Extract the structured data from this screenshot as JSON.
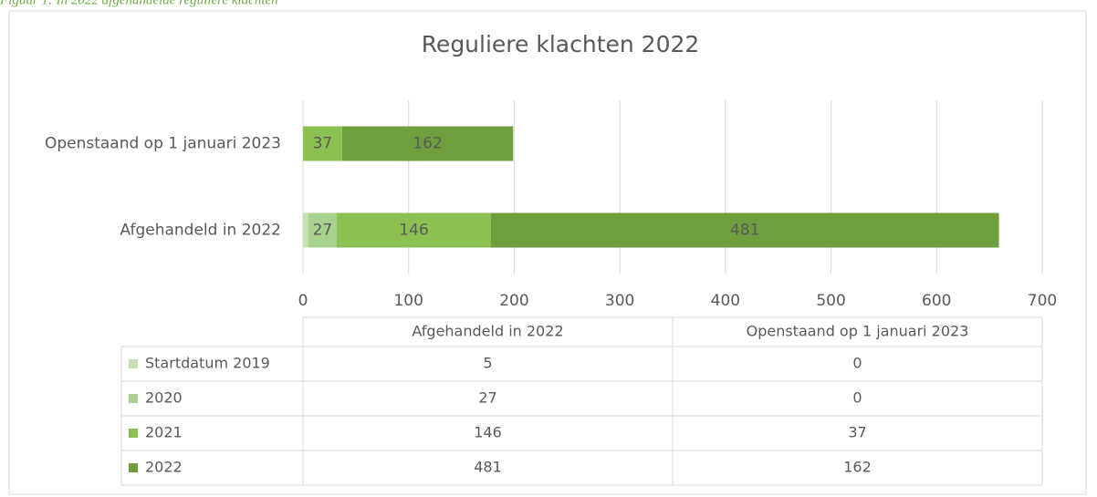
{
  "caption": "Figuur 1: In 2022 afgehandelde reguliere klachten",
  "chart_data": {
    "type": "stacked_bar_horizontal",
    "title": "Reguliere klachten 2022",
    "categories": [
      "Afgehandeld in 2022",
      "Openstaand op 1 januari 2023"
    ],
    "series": [
      {
        "name": "Startdatum 2019",
        "color": "#c5e0b4",
        "values": [
          5,
          0
        ]
      },
      {
        "name": "2020",
        "color": "#a9d18e",
        "values": [
          27,
          0
        ]
      },
      {
        "name": "2021",
        "color": "#8bc152",
        "values": [
          146,
          37
        ]
      },
      {
        "name": "2022",
        "color": "#6f9f3d",
        "values": [
          481,
          162
        ]
      }
    ],
    "xlim": [
      0,
      700
    ],
    "xticks": [
      0,
      100,
      200,
      300,
      400,
      500,
      600,
      700
    ],
    "grid": true,
    "data_table": true
  }
}
